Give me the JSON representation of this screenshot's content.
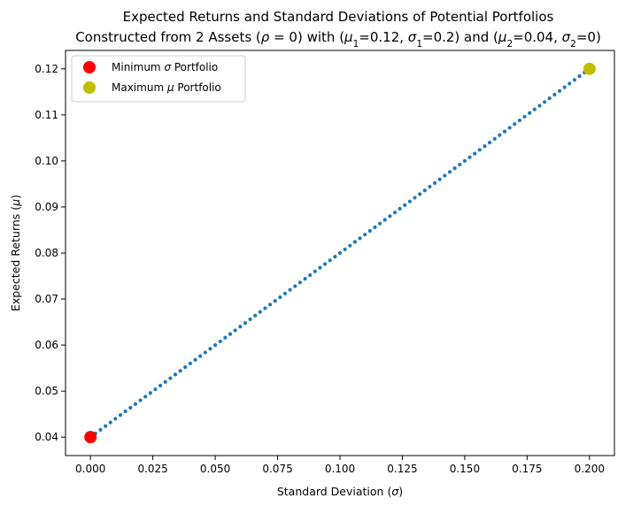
{
  "chart_data": {
    "type": "scatter",
    "title_line1": "Expected Returns and Standard Deviations of Potential Portfolios",
    "title_line2_parts": [
      "Constructed from 2 Assets (",
      "ρ",
      " = 0) with (",
      "μ",
      "1",
      "=0.12, ",
      "σ",
      "1",
      "=0.2) and (",
      "μ",
      "2",
      "=0.04, ",
      "σ",
      "2",
      "=0)"
    ],
    "xlabel_parts": [
      "Standard Deviation (",
      "σ",
      ")"
    ],
    "ylabel_parts": [
      "Expected Returns (",
      "μ",
      ")"
    ],
    "xlim": [
      -0.01,
      0.21
    ],
    "ylim": [
      0.036,
      0.124
    ],
    "x_ticks": [
      0.0,
      0.025,
      0.05,
      0.075,
      0.1,
      0.125,
      0.15,
      0.175,
      0.2
    ],
    "x_tick_labels": [
      "0.000",
      "0.025",
      "0.050",
      "0.075",
      "0.100",
      "0.125",
      "0.150",
      "0.175",
      "0.200"
    ],
    "y_ticks": [
      0.04,
      0.05,
      0.06,
      0.07,
      0.08,
      0.09,
      0.1,
      0.11,
      0.12
    ],
    "y_tick_labels": [
      "0.04",
      "0.05",
      "0.06",
      "0.07",
      "0.08",
      "0.09",
      "0.10",
      "0.11",
      "0.12"
    ],
    "grid": false,
    "legend_placement": "top-left",
    "frontier": {
      "x_start": 0.0,
      "x_end": 0.2,
      "y_start": 0.04,
      "y_end": 0.12,
      "num_points": 101,
      "color": "#1f77b4"
    },
    "highlights": [
      {
        "legend_parts": [
          "Minimum ",
          "σ",
          " Portfolio"
        ],
        "x": 0.0,
        "y": 0.04,
        "color": "#ff0000"
      },
      {
        "legend_parts": [
          "Maximum ",
          "μ",
          " Portfolio"
        ],
        "x": 0.2,
        "y": 0.12,
        "color": "#bfbf00"
      }
    ]
  }
}
